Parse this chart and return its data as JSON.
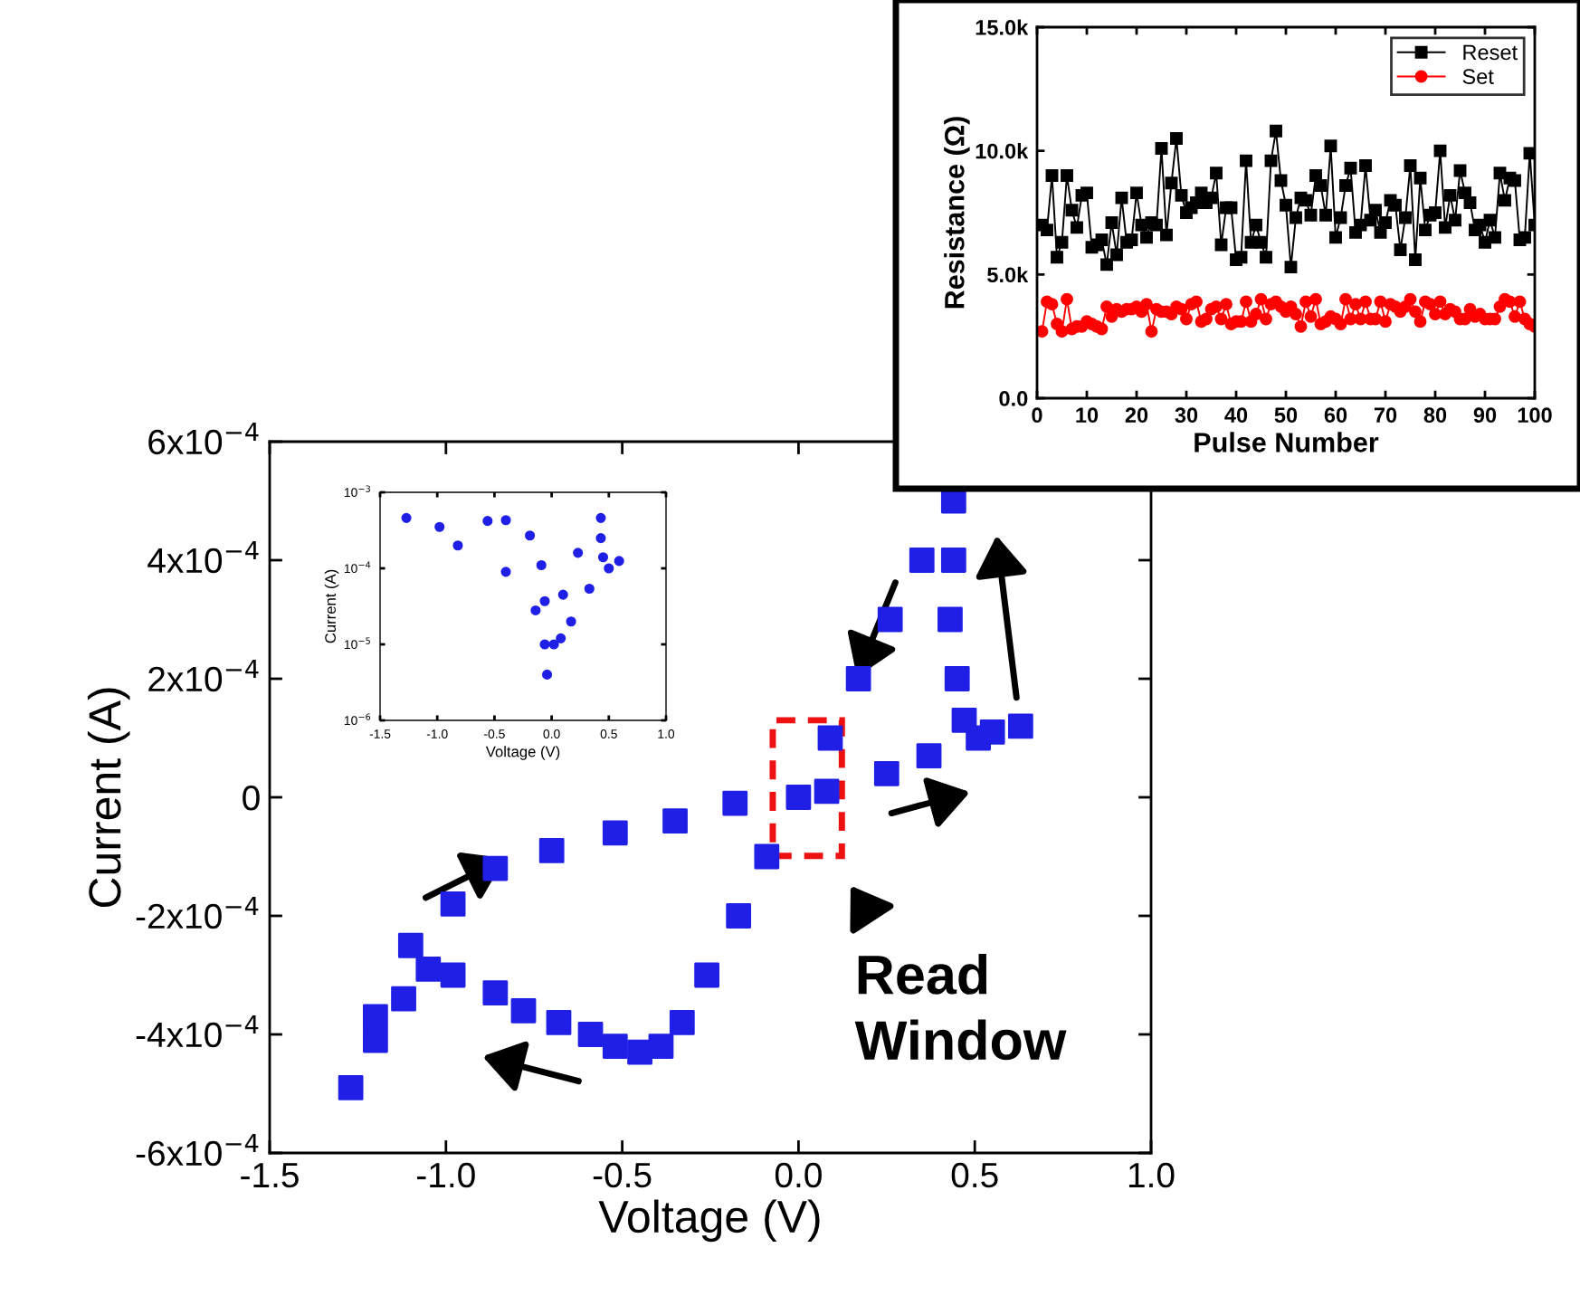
{
  "chart_data": [
    {
      "type": "scatter",
      "xlabel": "Voltage (V)",
      "ylabel": "Current (A)",
      "marker": "square",
      "xlim": [
        -1.5,
        1.0
      ],
      "xticks": [
        -1.5,
        {
          "value": -1,
          "label": "-1.0"
        },
        -0.5,
        {
          "value": 0,
          "label": "0.0"
        },
        0.5,
        {
          "value": 1,
          "label": "1.0"
        }
      ],
      "ylim": [
        -0.0006,
        0.0006
      ],
      "yticks": [
        {
          "value": -0.0006,
          "label": "-6x10$^{−4}$"
        },
        {
          "value": -0.0004,
          "label": "-4x10$^{−4}$"
        },
        {
          "value": -0.0002,
          "label": "-2x10$^{−4}$"
        },
        {
          "value": 0,
          "label": "0"
        },
        {
          "value": 0.0002,
          "label": "2x10$^{−4}$"
        },
        {
          "value": 0.0004,
          "label": "4x10$^{−4}$"
        },
        {
          "value": 0.0006,
          "label": "6x10$^{−4}$"
        }
      ],
      "series": [
        {
          "color": "#1f1fe6",
          "x": [
            0.0,
            0.08,
            0.25,
            0.37,
            0.51,
            0.63,
            0.55,
            0.47,
            0.45,
            0.43,
            0.44,
            0.44,
            0.35,
            0.26,
            0.17,
            0.09,
            -0.09,
            -0.17,
            -0.26,
            -0.33,
            -0.39,
            -0.45,
            -0.52,
            -0.59,
            -0.68,
            -0.78,
            -0.86,
            -0.98,
            -1.05,
            -1.12,
            -1.2,
            -1.27,
            -1.2,
            -1.1,
            -0.98,
            -0.86,
            -0.7,
            -0.52,
            -0.35,
            -0.18
          ],
          "values": [
            0.0,
            1e-05,
            4e-05,
            7e-05,
            0.0001,
            0.00012,
            0.00011,
            0.00013,
            0.0002,
            0.0003,
            0.0004,
            0.0005,
            0.0004,
            0.0003,
            0.0002,
            0.0001,
            -0.0001,
            -0.0002,
            -0.0003,
            -0.00038,
            -0.00042,
            -0.00043,
            -0.00042,
            -0.0004,
            -0.00038,
            -0.00036,
            -0.00033,
            -0.0003,
            -0.00029,
            -0.00034,
            -0.00041,
            -0.00049,
            -0.00037,
            -0.00025,
            -0.00018,
            -0.00012,
            -9e-05,
            -6e-05,
            -4e-05,
            -1e-05
          ]
        }
      ],
      "annotations": [
        "Read\nWindow"
      ]
    },
    {
      "type": "scatter",
      "xlabel": "Voltage (V)",
      "ylabel": "Current (A)",
      "marker": "circle",
      "log": true,
      "xlim": [
        -1.5,
        1.0
      ],
      "xticks": [
        -1.5,
        {
          "value": -1,
          "label": "-1.0"
        },
        -0.5,
        {
          "value": 0,
          "label": "0.0"
        },
        0.5,
        {
          "value": 1,
          "label": "1.0"
        }
      ],
      "ylim": [
        1e-06,
        0.001
      ],
      "yticks": [
        {
          "value": 1e-06,
          "label": "10$^{−6}$"
        },
        {
          "value": 1e-05,
          "label": "10$^{−5}$"
        },
        {
          "value": 0.0001,
          "label": "10$^{−4}$"
        },
        {
          "value": 0.001,
          "label": "10$^{−3}$"
        }
      ],
      "series": [
        {
          "color": "#1f1fe6",
          "x": [
            0.08,
            0.17,
            0.33,
            0.5,
            0.59,
            0.45,
            0.43,
            0.43,
            0.23,
            0.1,
            0.02,
            -0.04,
            -0.06,
            -0.14,
            -0.4,
            -0.82,
            -1.27,
            -0.98,
            -0.56,
            -0.4,
            -0.19,
            -0.09,
            -0.06
          ],
          "values": [
            1.2e-05,
            2e-05,
            5.4e-05,
            0.0001,
            0.000125,
            0.00014,
            0.00025,
            0.00046,
            0.00016,
            4.5e-05,
            1e-05,
            4e-06,
            1e-05,
            2.8e-05,
            9e-05,
            0.0002,
            0.00046,
            0.00035,
            0.00042,
            0.00043,
            0.00027,
            0.00011,
            3.7e-05
          ]
        }
      ]
    },
    {
      "type": "line",
      "xlabel": "Pulse Number",
      "ylabel": "Resistance (Ω)",
      "line_style": "solid",
      "legend": "top right",
      "xlim": [
        0,
        100
      ],
      "xticks": [
        0,
        10,
        20,
        30,
        40,
        50,
        60,
        70,
        80,
        90,
        100
      ],
      "ylim": [
        0,
        15000
      ],
      "yticks": [
        {
          "value": 0,
          "label": "0.0"
        },
        {
          "value": 5000,
          "label": "5.0k"
        },
        {
          "value": 10000,
          "label": "10.0k"
        },
        {
          "value": 15000,
          "label": "15.0k"
        }
      ],
      "series": [
        {
          "name": "Reset",
          "color": "#000000",
          "marker": "square",
          "x": [
            1,
            2,
            3,
            4,
            5,
            6,
            7,
            8,
            9,
            10,
            11,
            12,
            13,
            14,
            15,
            16,
            17,
            18,
            19,
            20,
            21,
            22,
            23,
            24,
            25,
            26,
            27,
            28,
            29,
            30,
            31,
            32,
            33,
            34,
            35,
            36,
            37,
            38,
            39,
            40,
            41,
            42,
            43,
            44,
            45,
            46,
            47,
            48,
            49,
            50,
            51,
            52,
            53,
            54,
            55,
            56,
            57,
            58,
            59,
            60,
            61,
            62,
            63,
            64,
            65,
            66,
            67,
            68,
            69,
            70,
            71,
            72,
            73,
            74,
            75,
            76,
            77,
            78,
            79,
            80,
            81,
            82,
            83,
            84,
            85,
            86,
            87,
            88,
            89,
            90,
            91,
            92,
            93,
            94,
            95,
            96,
            97,
            98,
            99,
            100
          ],
          "values": [
            7000,
            6800,
            9000,
            5700,
            6300,
            9000,
            7600,
            6900,
            8200,
            8300,
            6100,
            6200,
            6400,
            5400,
            7100,
            5800,
            8100,
            6300,
            6400,
            8300,
            7000,
            6500,
            7100,
            7000,
            10100,
            6600,
            8700,
            10500,
            8200,
            7500,
            7700,
            7900,
            8300,
            7900,
            8100,
            9100,
            6200,
            7700,
            7700,
            5600,
            5700,
            9600,
            6300,
            7000,
            6300,
            5700,
            9600,
            10800,
            8800,
            7800,
            5300,
            7300,
            8100,
            8000,
            7400,
            9000,
            8600,
            7400,
            10200,
            6500,
            7300,
            8600,
            9300,
            6700,
            7000,
            9400,
            7200,
            7600,
            6700,
            7100,
            8000,
            7800,
            6000,
            7300,
            9400,
            5600,
            8900,
            6800,
            7400,
            7500,
            10000,
            6900,
            8200,
            7200,
            9200,
            8300,
            7900,
            6800,
            7000,
            6300,
            7200,
            6500,
            9100,
            8000,
            8900,
            8800,
            6400,
            6500,
            9900,
            7000
          ]
        },
        {
          "name": "Set",
          "color": "#ff0000",
          "marker": "circle",
          "x": [
            1,
            2,
            3,
            4,
            5,
            6,
            7,
            8,
            9,
            10,
            11,
            12,
            13,
            14,
            15,
            16,
            17,
            18,
            19,
            20,
            21,
            22,
            23,
            24,
            25,
            26,
            27,
            28,
            29,
            30,
            31,
            32,
            33,
            34,
            35,
            36,
            37,
            38,
            39,
            40,
            41,
            42,
            43,
            44,
            45,
            46,
            47,
            48,
            49,
            50,
            51,
            52,
            53,
            54,
            55,
            56,
            57,
            58,
            59,
            60,
            61,
            62,
            63,
            64,
            65,
            66,
            67,
            68,
            69,
            70,
            71,
            72,
            73,
            74,
            75,
            76,
            77,
            78,
            79,
            80,
            81,
            82,
            83,
            84,
            85,
            86,
            87,
            88,
            89,
            90,
            91,
            92,
            93,
            94,
            95,
            96,
            97,
            98,
            99,
            100
          ],
          "values": [
            2700,
            3900,
            3800,
            3000,
            2700,
            4000,
            2800,
            2900,
            2900,
            3100,
            3000,
            2900,
            2800,
            3700,
            3300,
            3600,
            3500,
            3600,
            3600,
            3700,
            3500,
            3800,
            2700,
            3600,
            3500,
            3500,
            3400,
            3700,
            3600,
            3200,
            3800,
            3900,
            3100,
            3200,
            3600,
            3700,
            3200,
            3800,
            3000,
            3100,
            3100,
            3900,
            3100,
            3400,
            4000,
            3200,
            3800,
            3900,
            3700,
            3500,
            3700,
            3400,
            2900,
            3900,
            3300,
            4000,
            3000,
            3100,
            3300,
            3200,
            3000,
            4000,
            3200,
            3800,
            3200,
            3900,
            3200,
            3200,
            3900,
            3100,
            3800,
            3700,
            3500,
            3700,
            4000,
            3500,
            3100,
            3900,
            3800,
            3400,
            3900,
            3400,
            3600,
            3500,
            3200,
            3200,
            3600,
            3300,
            3400,
            3200,
            3200,
            3200,
            3700,
            4000,
            3900,
            3300,
            3900,
            3200,
            3000,
            2900
          ]
        }
      ]
    }
  ]
}
